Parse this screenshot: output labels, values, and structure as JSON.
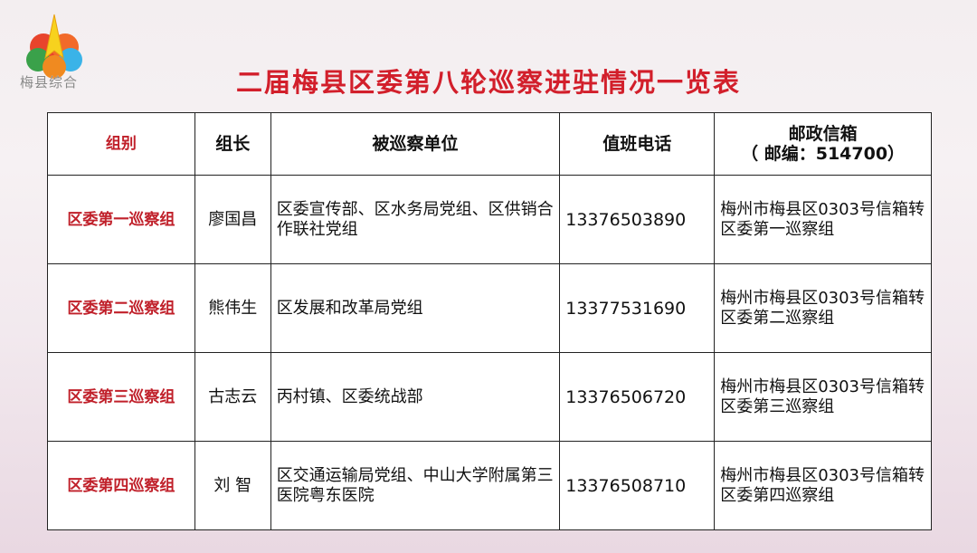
{
  "logo": {
    "text": "梅县综合"
  },
  "title": "二届梅县区委第八轮巡察进驻情况一览表",
  "table": {
    "headers": [
      "组别",
      "组长",
      "被巡察单位",
      "值班电话",
      "邮政信箱",
      "（ 邮编：514700）"
    ],
    "rows": [
      {
        "group": "区委第一巡察组",
        "leader": "廖国昌",
        "units": "区委宣传部、区水务局党组、区供销合作联社党组",
        "phone": "13376503890",
        "mailbox": "梅州市梅县区0303号信箱转区委第一巡察组"
      },
      {
        "group": "区委第二巡察组",
        "leader": "熊伟生",
        "units": "区发展和改革局党组",
        "phone": "13377531690",
        "mailbox": "梅州市梅县区0303号信箱转区委第二巡察组"
      },
      {
        "group": "区委第三巡察组",
        "leader": "古志云",
        "units": "丙村镇、区委统战部",
        "phone": "13376506720",
        "mailbox": "梅州市梅县区0303号信箱转区委第三巡察组"
      },
      {
        "group": "区委第四巡察组",
        "leader": "刘 智",
        "units": "区交通运输局党组、中山大学附属第三医院粤东医院",
        "phone": "13376508710",
        "mailbox": "梅州市梅县区0303号信箱转区委第四巡察组"
      }
    ]
  }
}
